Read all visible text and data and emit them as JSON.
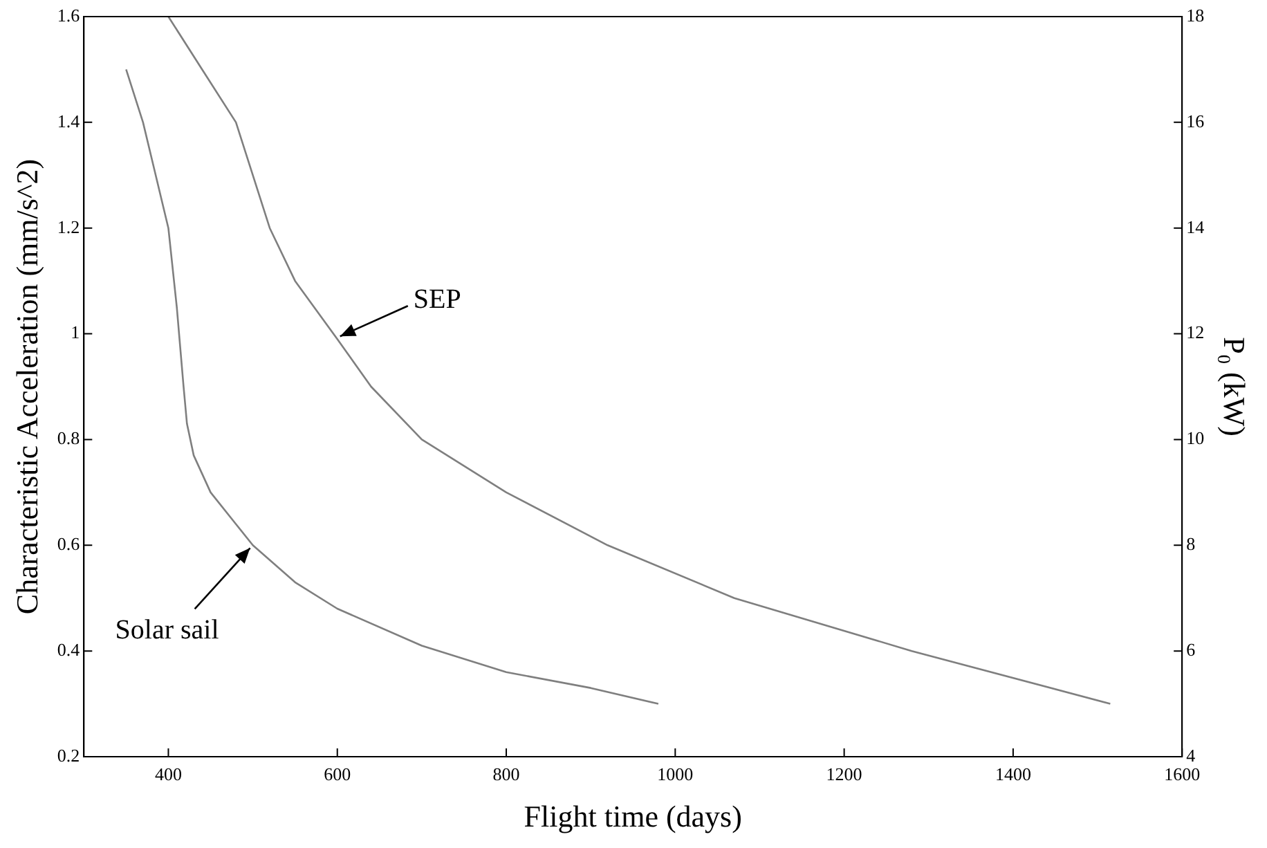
{
  "chart_data": {
    "type": "line",
    "xlabel": "Flight time (days)",
    "ylabel": "Characteristic Acceleration (mm/s^2)",
    "y2label": "P₀ (kW)",
    "xlim": [
      300,
      1600
    ],
    "xticks": [
      400,
      600,
      800,
      1000,
      1200,
      1400,
      1600
    ],
    "ylim": [
      0.2,
      1.6
    ],
    "yticks": [
      0.2,
      0.4,
      0.6,
      0.8,
      1,
      1.2,
      1.4,
      1.6
    ],
    "y2lim": [
      4,
      18
    ],
    "y2ticks": [
      4,
      6,
      8,
      10,
      12,
      14,
      16,
      18
    ],
    "grid": false,
    "legend": false,
    "series": [
      {
        "color": "#7f7f7f",
        "x": [
          400,
          440,
          480,
          520,
          550,
          600,
          640,
          700,
          800,
          920,
          1070,
          1280,
          1515
        ],
        "values": [
          1.6,
          1.5,
          1.4,
          1.2,
          1.1,
          0.99,
          0.9,
          0.8,
          0.7,
          0.6,
          0.5,
          0.4,
          0.3
        ]
      },
      {
        "color": "#7f7f7f",
        "x": [
          350,
          370,
          385,
          400,
          410,
          418,
          422,
          430,
          450,
          480,
          500,
          550,
          600,
          700,
          800,
          900,
          980
        ],
        "values": [
          1.5,
          1.4,
          1.3,
          1.2,
          1.05,
          0.9,
          0.83,
          0.77,
          0.7,
          0.64,
          0.6,
          0.53,
          0.48,
          0.41,
          0.36,
          0.33,
          0.3
        ]
      }
    ],
    "annotations": [
      {
        "text": "SEP",
        "x": 600,
        "y": 0.99
      },
      {
        "text": "Solar sail",
        "x": 500,
        "y": 0.6
      }
    ]
  }
}
